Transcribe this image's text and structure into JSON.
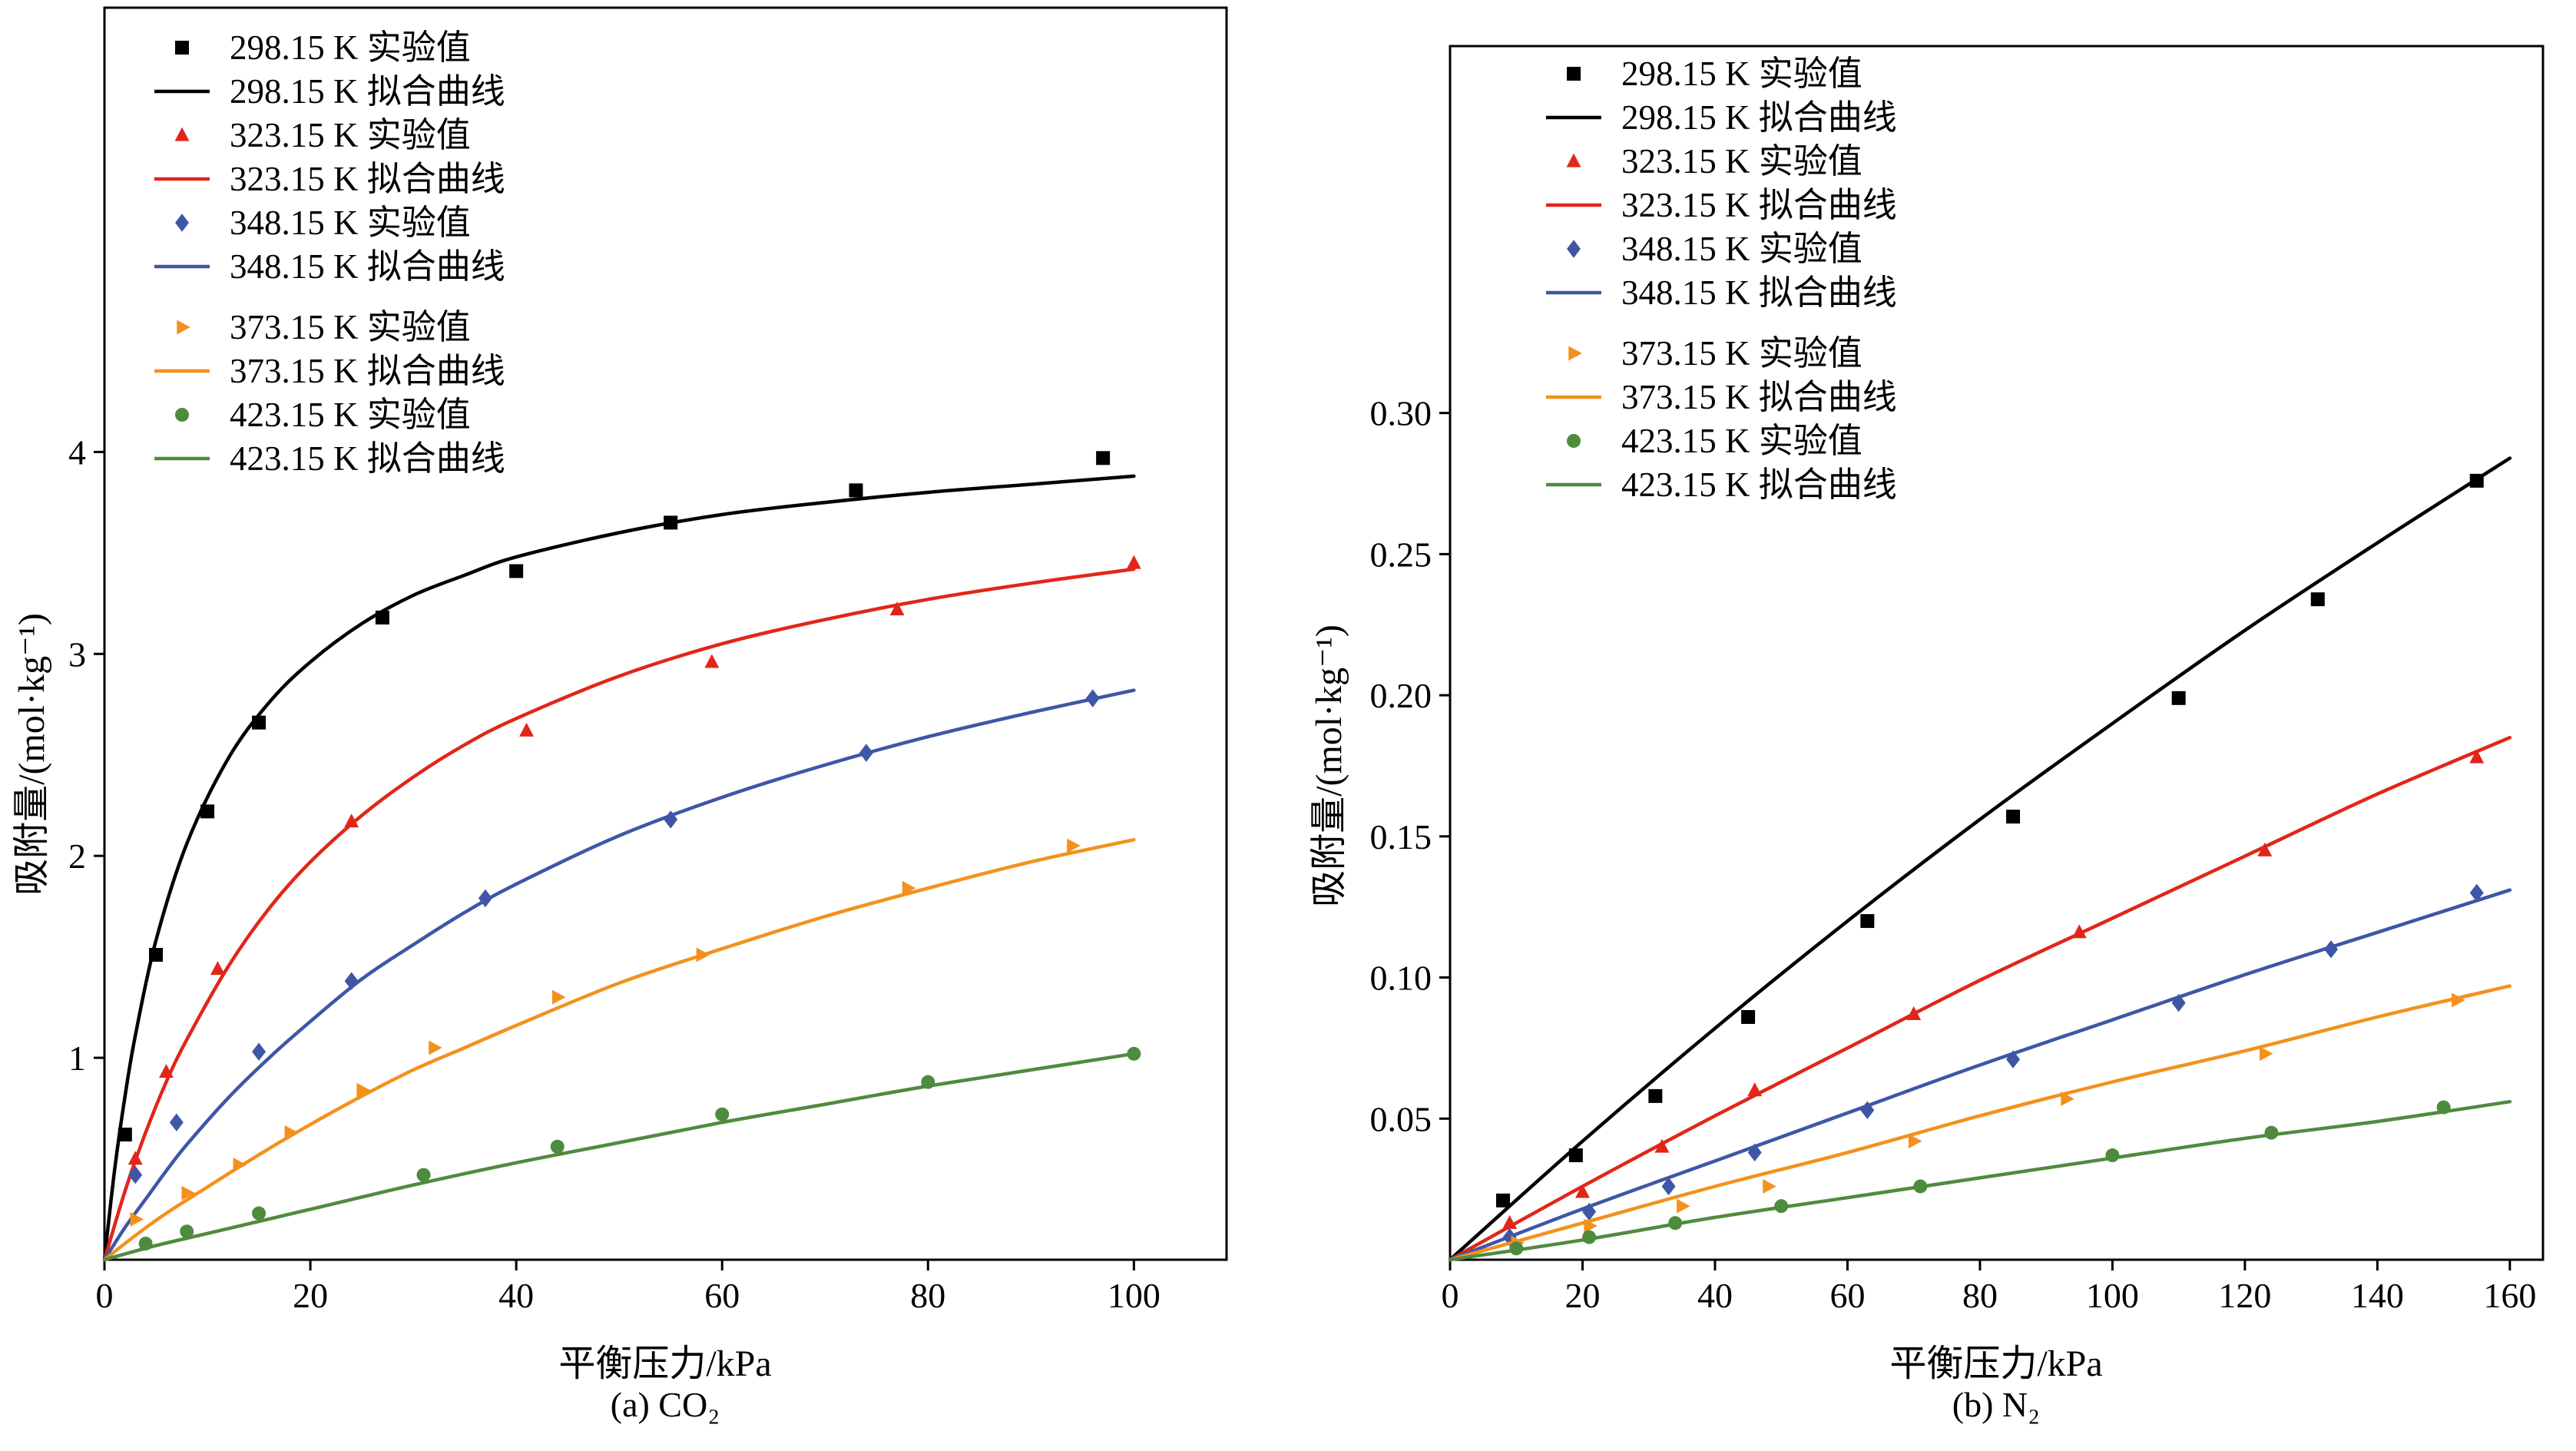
{
  "figure": {
    "background": "#ffffff",
    "text_color": "#000000"
  },
  "chart_data": [
    {
      "id": "a",
      "type": "line",
      "caption": "(a) CO₂",
      "xlabel": "平衡压力/kPa",
      "ylabel": "吸附量/(mol·kg⁻¹)",
      "xlim": [
        0,
        109
      ],
      "ylim": [
        0,
        6.2
      ],
      "xticks": [
        0,
        20,
        40,
        60,
        80,
        100
      ],
      "xtick_labels": [
        "0",
        "20",
        "40",
        "60",
        "80",
        "100"
      ],
      "yticks": [
        1,
        2,
        3,
        4
      ],
      "ytick_labels": [
        "1",
        "2",
        "3",
        "4"
      ],
      "grid": false,
      "legend_position": "top-left-inside",
      "series": [
        {
          "name": "298.15 K",
          "color": "#000000",
          "marker": "square",
          "legend_points": "298.15 K 实验值",
          "legend_curve": "298.15 K 拟合曲线",
          "points": [
            [
              2,
              0.62
            ],
            [
              5,
              1.51
            ],
            [
              10,
              2.22
            ],
            [
              15,
              2.66
            ],
            [
              27,
              3.18
            ],
            [
              40,
              3.41
            ],
            [
              55,
              3.65
            ],
            [
              73,
              3.81
            ],
            [
              97,
              3.97
            ]
          ],
          "curve": [
            [
              0,
              0
            ],
            [
              1,
              0.45
            ],
            [
              2,
              0.81
            ],
            [
              3,
              1.11
            ],
            [
              5,
              1.58
            ],
            [
              8,
              2.06
            ],
            [
              12,
              2.48
            ],
            [
              16,
              2.76
            ],
            [
              20,
              2.96
            ],
            [
              25,
              3.15
            ],
            [
              30,
              3.29
            ],
            [
              35,
              3.39
            ],
            [
              40,
              3.48
            ],
            [
              50,
              3.6
            ],
            [
              60,
              3.69
            ],
            [
              70,
              3.75
            ],
            [
              80,
              3.8
            ],
            [
              90,
              3.84
            ],
            [
              100,
              3.88
            ]
          ]
        },
        {
          "name": "323.15 K",
          "color": "#e12619",
          "marker": "triangle-up",
          "legend_points": "323.15 K 实验值",
          "legend_curve": "323.15 K 拟合曲线",
          "points": [
            [
              3,
              0.5
            ],
            [
              6,
              0.93
            ],
            [
              11,
              1.44
            ],
            [
              24,
              2.17
            ],
            [
              41,
              2.62
            ],
            [
              59,
              2.96
            ],
            [
              77,
              3.22
            ],
            [
              100,
              3.45
            ]
          ],
          "curve": [
            [
              0,
              0
            ],
            [
              2,
              0.34
            ],
            [
              4,
              0.63
            ],
            [
              6,
              0.88
            ],
            [
              8,
              1.09
            ],
            [
              12,
              1.45
            ],
            [
              16,
              1.74
            ],
            [
              20,
              1.97
            ],
            [
              25,
              2.2
            ],
            [
              30,
              2.39
            ],
            [
              35,
              2.55
            ],
            [
              40,
              2.68
            ],
            [
              50,
              2.89
            ],
            [
              60,
              3.05
            ],
            [
              70,
              3.17
            ],
            [
              80,
              3.27
            ],
            [
              90,
              3.35
            ],
            [
              100,
              3.42
            ]
          ]
        },
        {
          "name": "348.15 K",
          "color": "#3f56a6",
          "marker": "diamond",
          "legend_points": "348.15 K 实验值",
          "legend_curve": "348.15 K 拟合曲线",
          "points": [
            [
              3,
              0.42
            ],
            [
              7,
              0.68
            ],
            [
              15,
              1.03
            ],
            [
              24,
              1.38
            ],
            [
              37,
              1.79
            ],
            [
              55,
              2.18
            ],
            [
              74,
              2.51
            ],
            [
              96,
              2.78
            ]
          ],
          "curve": [
            [
              0,
              0
            ],
            [
              2,
              0.16
            ],
            [
              4,
              0.3
            ],
            [
              6,
              0.44
            ],
            [
              8,
              0.57
            ],
            [
              12,
              0.8
            ],
            [
              16,
              1.0
            ],
            [
              20,
              1.18
            ],
            [
              25,
              1.39
            ],
            [
              30,
              1.56
            ],
            [
              35,
              1.72
            ],
            [
              40,
              1.86
            ],
            [
              50,
              2.1
            ],
            [
              60,
              2.29
            ],
            [
              70,
              2.45
            ],
            [
              80,
              2.59
            ],
            [
              90,
              2.71
            ],
            [
              100,
              2.82
            ]
          ]
        },
        {
          "name": "373.15 K",
          "color": "#f3911d",
          "marker": "triangle-right",
          "legend_points": "373.15 K 实验值",
          "legend_curve": "373.15 K 拟合曲线",
          "points": [
            [
              3,
              0.2
            ],
            [
              8,
              0.33
            ],
            [
              13,
              0.47
            ],
            [
              18,
              0.63
            ],
            [
              25,
              0.84
            ],
            [
              32,
              1.05
            ],
            [
              44,
              1.3
            ],
            [
              58,
              1.51
            ],
            [
              78,
              1.84
            ],
            [
              94,
              2.05
            ]
          ],
          "curve": [
            [
              0,
              0
            ],
            [
              3,
              0.12
            ],
            [
              6,
              0.23
            ],
            [
              10,
              0.36
            ],
            [
              15,
              0.52
            ],
            [
              20,
              0.67
            ],
            [
              25,
              0.81
            ],
            [
              30,
              0.94
            ],
            [
              35,
              1.05
            ],
            [
              40,
              1.16
            ],
            [
              50,
              1.37
            ],
            [
              60,
              1.54
            ],
            [
              70,
              1.7
            ],
            [
              80,
              1.84
            ],
            [
              90,
              1.97
            ],
            [
              100,
              2.08
            ]
          ]
        },
        {
          "name": "423.15 K",
          "color": "#4f8b3f",
          "marker": "circle",
          "legend_points": "423.15 K 实验值",
          "legend_curve": "423.15 K 拟合曲线",
          "points": [
            [
              4,
              0.08
            ],
            [
              8,
              0.14
            ],
            [
              15,
              0.23
            ],
            [
              31,
              0.42
            ],
            [
              44,
              0.56
            ],
            [
              60,
              0.72
            ],
            [
              80,
              0.88
            ],
            [
              100,
              1.02
            ]
          ],
          "curve": [
            [
              0,
              0
            ],
            [
              5,
              0.07
            ],
            [
              10,
              0.13
            ],
            [
              20,
              0.25
            ],
            [
              30,
              0.37
            ],
            [
              40,
              0.48
            ],
            [
              50,
              0.58
            ],
            [
              60,
              0.68
            ],
            [
              70,
              0.77
            ],
            [
              80,
              0.86
            ],
            [
              90,
              0.94
            ],
            [
              100,
              1.02
            ]
          ]
        }
      ]
    },
    {
      "id": "b",
      "type": "line",
      "caption": "(b) N₂",
      "xlabel": "平衡压力/kPa",
      "ylabel": "吸附量/(mol·kg⁻¹)",
      "xlim": [
        0,
        165
      ],
      "ylim": [
        0,
        0.43
      ],
      "xticks": [
        0,
        20,
        40,
        60,
        80,
        100,
        120,
        140,
        160
      ],
      "xtick_labels": [
        "0",
        "20",
        "40",
        "60",
        "80",
        "100",
        "120",
        "140",
        "160"
      ],
      "yticks": [
        0.05,
        0.1,
        0.15,
        0.2,
        0.25,
        0.3
      ],
      "ytick_labels": [
        "0.05",
        "0.10",
        "0.15",
        "0.20",
        "0.25",
        "0.30"
      ],
      "grid": false,
      "legend_position": "top-left-inside",
      "series": [
        {
          "name": "298.15 K",
          "color": "#000000",
          "marker": "square",
          "legend_points": "298.15 K 实验值",
          "legend_curve": "298.15 K 拟合曲线",
          "points": [
            [
              8,
              0.021
            ],
            [
              19,
              0.037
            ],
            [
              31,
              0.058
            ],
            [
              45,
              0.086
            ],
            [
              63,
              0.12
            ],
            [
              85,
              0.157
            ],
            [
              110,
              0.199
            ],
            [
              131,
              0.234
            ],
            [
              155,
              0.276
            ]
          ],
          "curve": [
            [
              0,
              0
            ],
            [
              20,
              0.042
            ],
            [
              40,
              0.082
            ],
            [
              60,
              0.12
            ],
            [
              80,
              0.156
            ],
            [
              100,
              0.19
            ],
            [
              120,
              0.223
            ],
            [
              140,
              0.254
            ],
            [
              160,
              0.284
            ]
          ]
        },
        {
          "name": "323.15 K",
          "color": "#e12619",
          "marker": "triangle-up",
          "legend_points": "323.15 K 实验值",
          "legend_curve": "323.15 K 拟合曲线",
          "points": [
            [
              9,
              0.013
            ],
            [
              20,
              0.024
            ],
            [
              32,
              0.04
            ],
            [
              46,
              0.06
            ],
            [
              70,
              0.087
            ],
            [
              95,
              0.116
            ],
            [
              123,
              0.145
            ],
            [
              155,
              0.178
            ]
          ],
          "curve": [
            [
              0,
              0
            ],
            [
              20,
              0.026
            ],
            [
              40,
              0.051
            ],
            [
              60,
              0.075
            ],
            [
              80,
              0.099
            ],
            [
              100,
              0.121
            ],
            [
              120,
              0.143
            ],
            [
              140,
              0.165
            ],
            [
              160,
              0.185
            ]
          ]
        },
        {
          "name": "348.15 K",
          "color": "#3f56a6",
          "marker": "diamond",
          "legend_points": "348.15 K 实验值",
          "legend_curve": "348.15 K 拟合曲线",
          "points": [
            [
              9,
              0.008
            ],
            [
              21,
              0.017
            ],
            [
              33,
              0.026
            ],
            [
              46,
              0.038
            ],
            [
              63,
              0.053
            ],
            [
              85,
              0.071
            ],
            [
              110,
              0.091
            ],
            [
              133,
              0.11
            ],
            [
              155,
              0.13
            ]
          ],
          "curve": [
            [
              0,
              0
            ],
            [
              20,
              0.018
            ],
            [
              40,
              0.035
            ],
            [
              60,
              0.052
            ],
            [
              80,
              0.069
            ],
            [
              100,
              0.085
            ],
            [
              120,
              0.101
            ],
            [
              140,
              0.116
            ],
            [
              160,
              0.131
            ]
          ]
        },
        {
          "name": "373.15 K",
          "color": "#f3911d",
          "marker": "triangle-right",
          "legend_points": "373.15 K 实验值",
          "legend_curve": "373.15 K 拟合曲线",
          "points": [
            [
              10,
              0.006
            ],
            [
              21,
              0.012
            ],
            [
              35,
              0.019
            ],
            [
              48,
              0.026
            ],
            [
              70,
              0.042
            ],
            [
              93,
              0.057
            ],
            [
              123,
              0.073
            ],
            [
              152,
              0.092
            ]
          ],
          "curve": [
            [
              0,
              0
            ],
            [
              20,
              0.013
            ],
            [
              40,
              0.026
            ],
            [
              60,
              0.038
            ],
            [
              80,
              0.051
            ],
            [
              100,
              0.063
            ],
            [
              120,
              0.074
            ],
            [
              140,
              0.086
            ],
            [
              160,
              0.097
            ]
          ]
        },
        {
          "name": "423.15 K",
          "color": "#4f8b3f",
          "marker": "circle",
          "legend_points": "423.15 K 实验值",
          "legend_curve": "423.15 K 拟合曲线",
          "points": [
            [
              10,
              0.004
            ],
            [
              21,
              0.008
            ],
            [
              34,
              0.013
            ],
            [
              50,
              0.019
            ],
            [
              71,
              0.026
            ],
            [
              100,
              0.037
            ],
            [
              124,
              0.045
            ],
            [
              150,
              0.054
            ]
          ],
          "curve": [
            [
              0,
              0
            ],
            [
              20,
              0.007
            ],
            [
              40,
              0.015
            ],
            [
              60,
              0.022
            ],
            [
              80,
              0.029
            ],
            [
              100,
              0.036
            ],
            [
              120,
              0.043
            ],
            [
              140,
              0.049
            ],
            [
              160,
              0.056
            ]
          ]
        }
      ]
    }
  ]
}
